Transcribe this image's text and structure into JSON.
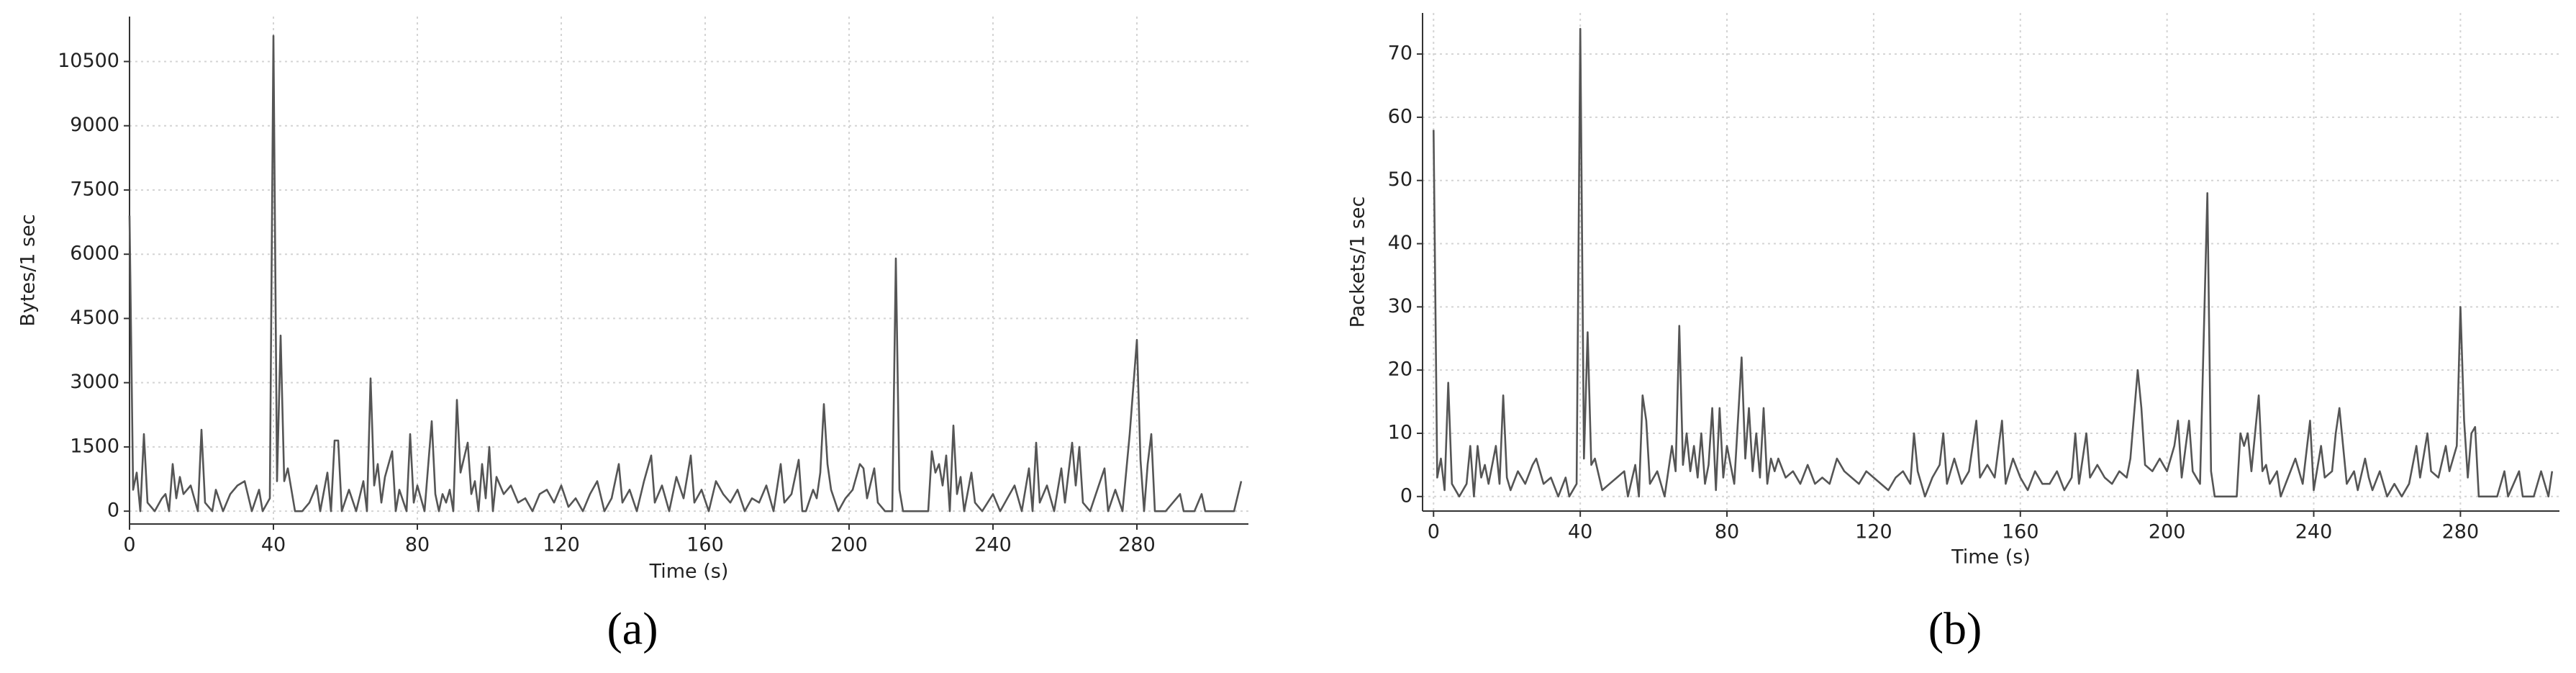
{
  "chart_data": [
    {
      "type": "line",
      "y_label": "Bytes/1 sec",
      "x_label": "Time (s)",
      "caption": "(a)",
      "color": "#555555",
      "grid": true,
      "xlim": [
        0,
        311
      ],
      "ylim": [
        -300,
        11550
      ],
      "xticks": [
        0,
        40,
        80,
        120,
        160,
        200,
        240,
        280
      ],
      "yticks": [
        0,
        1500,
        3000,
        4500,
        6000,
        7500,
        9000,
        10500
      ],
      "x": [
        0,
        1,
        2,
        3,
        4,
        5,
        7,
        9,
        10,
        11,
        12,
        13,
        14,
        15,
        17,
        19,
        20,
        21,
        23,
        24,
        26,
        28,
        30,
        32,
        34,
        36,
        37,
        39,
        40,
        41,
        42,
        43,
        44,
        46,
        48,
        50,
        52,
        53,
        55,
        56,
        57,
        58,
        59,
        61,
        63,
        65,
        66,
        67,
        68,
        69,
        70,
        71,
        73,
        74,
        75,
        77,
        78,
        79,
        80,
        82,
        84,
        85,
        86,
        87,
        88,
        89,
        90,
        91,
        92,
        94,
        95,
        96,
        97,
        98,
        99,
        100,
        101,
        102,
        104,
        106,
        108,
        110,
        112,
        114,
        116,
        118,
        120,
        122,
        124,
        126,
        128,
        130,
        132,
        134,
        136,
        137,
        139,
        141,
        143,
        145,
        146,
        148,
        150,
        152,
        154,
        156,
        157,
        159,
        161,
        163,
        165,
        167,
        169,
        171,
        173,
        175,
        177,
        179,
        181,
        182,
        184,
        186,
        187,
        188,
        190,
        191,
        192,
        193,
        194,
        195,
        197,
        199,
        201,
        203,
        204,
        205,
        207,
        208,
        210,
        212,
        213,
        214,
        215,
        222,
        223,
        224,
        225,
        226,
        227,
        228,
        229,
        230,
        231,
        232,
        234,
        235,
        237,
        240,
        242,
        244,
        246,
        248,
        250,
        251,
        252,
        253,
        255,
        257,
        259,
        260,
        262,
        263,
        264,
        265,
        267,
        269,
        271,
        272,
        274,
        276,
        278,
        280,
        281,
        282,
        283,
        284,
        285,
        288,
        292,
        293,
        296,
        298,
        299,
        303,
        305,
        307,
        309
      ],
      "values": [
        6900,
        500,
        900,
        0,
        1800,
        200,
        0,
        300,
        400,
        0,
        1100,
        300,
        800,
        400,
        600,
        0,
        1900,
        200,
        0,
        500,
        0,
        400,
        600,
        700,
        0,
        500,
        0,
        300,
        11100,
        700,
        4100,
        700,
        1000,
        0,
        0,
        200,
        600,
        0,
        900,
        0,
        1650,
        1650,
        0,
        500,
        0,
        700,
        0,
        3100,
        600,
        1100,
        200,
        800,
        1400,
        0,
        500,
        0,
        1800,
        200,
        600,
        0,
        2100,
        400,
        0,
        400,
        200,
        500,
        0,
        2600,
        900,
        1600,
        400,
        700,
        0,
        1100,
        300,
        1500,
        0,
        800,
        400,
        600,
        200,
        300,
        0,
        400,
        500,
        200,
        600,
        100,
        300,
        0,
        400,
        700,
        0,
        300,
        1100,
        200,
        500,
        0,
        700,
        1300,
        200,
        600,
        0,
        800,
        300,
        1300,
        200,
        500,
        0,
        700,
        400,
        200,
        500,
        0,
        300,
        200,
        600,
        0,
        1100,
        200,
        400,
        1200,
        0,
        0,
        500,
        300,
        900,
        2500,
        1100,
        500,
        0,
        300,
        500,
        1100,
        1000,
        300,
        1000,
        200,
        0,
        0,
        5900,
        500,
        0,
        0,
        1400,
        900,
        1100,
        600,
        1300,
        0,
        2000,
        400,
        800,
        0,
        900,
        200,
        0,
        400,
        0,
        300,
        600,
        0,
        1000,
        0,
        1600,
        200,
        600,
        0,
        1000,
        200,
        1600,
        600,
        1500,
        200,
        0,
        500,
        1000,
        0,
        500,
        0,
        1800,
        4000,
        1200,
        0,
        1100,
        1800,
        0,
        0,
        400,
        0,
        0,
        400,
        0,
        0,
        0,
        0,
        700
      ]
    },
    {
      "type": "line",
      "y_label": "Packets/1 sec",
      "x_label": "Time (s)",
      "caption": "(b)",
      "color": "#555555",
      "grid": true,
      "xlim": [
        -3,
        307
      ],
      "ylim": [
        -2.3,
        76.5
      ],
      "xticks": [
        0,
        40,
        80,
        120,
        160,
        200,
        240,
        280
      ],
      "yticks": [
        0,
        10,
        20,
        30,
        40,
        50,
        60,
        70
      ],
      "x": [
        0,
        1,
        2,
        3,
        4,
        5,
        7,
        9,
        10,
        11,
        12,
        13,
        14,
        15,
        17,
        18,
        19,
        20,
        21,
        23,
        25,
        27,
        28,
        30,
        32,
        34,
        36,
        37,
        39,
        40,
        41,
        42,
        43,
        44,
        46,
        48,
        50,
        52,
        53,
        55,
        56,
        57,
        58,
        59,
        61,
        63,
        65,
        66,
        67,
        68,
        69,
        70,
        71,
        72,
        73,
        74,
        75,
        76,
        77,
        78,
        79,
        80,
        82,
        84,
        85,
        86,
        87,
        88,
        89,
        90,
        91,
        92,
        93,
        94,
        96,
        98,
        100,
        102,
        104,
        106,
        108,
        110,
        112,
        114,
        116,
        118,
        120,
        122,
        124,
        126,
        128,
        130,
        131,
        132,
        134,
        136,
        138,
        139,
        140,
        142,
        144,
        146,
        148,
        149,
        151,
        153,
        155,
        156,
        158,
        160,
        162,
        164,
        166,
        168,
        170,
        172,
        174,
        175,
        176,
        178,
        179,
        181,
        183,
        185,
        187,
        189,
        190,
        192,
        193,
        194,
        196,
        198,
        200,
        202,
        203,
        204,
        206,
        207,
        209,
        211,
        212,
        213,
        219,
        220,
        221,
        222,
        223,
        225,
        226,
        227,
        228,
        230,
        231,
        233,
        235,
        237,
        239,
        240,
        242,
        243,
        245,
        246,
        247,
        248,
        249,
        251,
        252,
        254,
        255,
        256,
        258,
        260,
        262,
        264,
        266,
        268,
        269,
        271,
        272,
        274,
        276,
        277,
        279,
        280,
        281,
        282,
        283,
        284,
        285,
        290,
        292,
        293,
        296,
        297,
        300,
        302,
        304,
        305
      ],
      "values": [
        58,
        3,
        6,
        1,
        18,
        2,
        0,
        2,
        8,
        0,
        8,
        3,
        5,
        2,
        8,
        2,
        16,
        3,
        1,
        4,
        2,
        5,
        6,
        2,
        3,
        0,
        3,
        0,
        2,
        74,
        6,
        26,
        5,
        6,
        1,
        2,
        3,
        4,
        0,
        5,
        0,
        16,
        12,
        2,
        4,
        0,
        8,
        4,
        27,
        5,
        10,
        4,
        8,
        3,
        10,
        2,
        5,
        14,
        1,
        14,
        3,
        8,
        2,
        22,
        6,
        14,
        4,
        10,
        3,
        14,
        2,
        6,
        4,
        6,
        3,
        4,
        2,
        5,
        2,
        3,
        2,
        6,
        4,
        3,
        2,
        4,
        3,
        2,
        1,
        3,
        4,
        2,
        10,
        4,
        0,
        3,
        5,
        10,
        2,
        6,
        2,
        4,
        12,
        3,
        5,
        3,
        12,
        2,
        6,
        3,
        1,
        4,
        2,
        2,
        4,
        1,
        3,
        10,
        2,
        10,
        3,
        5,
        3,
        2,
        4,
        3,
        6,
        20,
        14,
        5,
        4,
        6,
        4,
        8,
        12,
        3,
        12,
        4,
        2,
        48,
        4,
        0,
        0,
        10,
        8,
        10,
        4,
        16,
        4,
        5,
        2,
        4,
        0,
        3,
        6,
        2,
        12,
        1,
        8,
        3,
        4,
        10,
        14,
        8,
        2,
        4,
        1,
        6,
        3,
        1,
        4,
        0,
        2,
        0,
        2,
        8,
        3,
        10,
        4,
        3,
        8,
        4,
        8,
        30,
        12,
        3,
        10,
        11,
        0,
        0,
        4,
        0,
        4,
        0,
        0,
        4,
        0,
        4
      ]
    }
  ]
}
